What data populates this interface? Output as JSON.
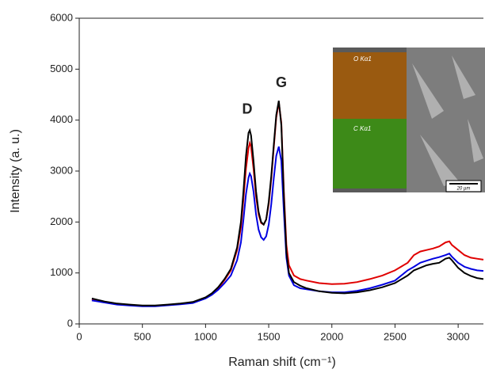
{
  "chart_data": {
    "type": "line",
    "xlabel": "Raman shift (cm⁻¹)",
    "ylabel": "Intensity (a. u.)",
    "annotations": [
      "D",
      "G"
    ],
    "inset_labels": [
      "O Kα1",
      "C Kα1",
      "20 µm"
    ],
    "x": [
      100,
      150,
      200,
      300,
      400,
      500,
      600,
      700,
      800,
      900,
      1000,
      1050,
      1100,
      1150,
      1200,
      1250,
      1280,
      1300,
      1320,
      1340,
      1350,
      1360,
      1380,
      1400,
      1420,
      1440,
      1460,
      1480,
      1500,
      1520,
      1540,
      1560,
      1580,
      1600,
      1620,
      1640,
      1660,
      1700,
      1750,
      1800,
      1900,
      2000,
      2100,
      2200,
      2300,
      2400,
      2500,
      2600,
      2650,
      2700,
      2750,
      2800,
      2850,
      2900,
      2930,
      2950,
      3000,
      3050,
      3100,
      3150,
      3200
    ],
    "series": [
      {
        "color": "#e00000",
        "values": [
          480,
          450,
          430,
          390,
          370,
          350,
          350,
          370,
          390,
          420,
          510,
          590,
          700,
          860,
          1050,
          1450,
          1900,
          2450,
          3050,
          3450,
          3550,
          3480,
          3050,
          2500,
          2150,
          1980,
          1950,
          2050,
          2350,
          2850,
          3450,
          4050,
          4350,
          3950,
          2600,
          1550,
          1150,
          950,
          880,
          850,
          800,
          780,
          790,
          820,
          880,
          950,
          1050,
          1200,
          1350,
          1420,
          1450,
          1480,
          1520,
          1600,
          1620,
          1550,
          1450,
          1350,
          1300,
          1280,
          1260
        ]
      },
      {
        "color": "#0000e0",
        "values": [
          460,
          440,
          420,
          380,
          360,
          345,
          345,
          365,
          385,
          410,
          500,
          570,
          670,
          800,
          950,
          1250,
          1600,
          2050,
          2550,
          2870,
          2950,
          2900,
          2600,
          2150,
          1850,
          1700,
          1650,
          1720,
          1950,
          2350,
          2850,
          3300,
          3480,
          3200,
          2200,
          1300,
          950,
          760,
          700,
          680,
          640,
          620,
          620,
          650,
          700,
          770,
          850,
          1050,
          1120,
          1200,
          1240,
          1280,
          1310,
          1350,
          1380,
          1320,
          1200,
          1120,
          1080,
          1050,
          1040
        ]
      },
      {
        "color": "#000000",
        "values": [
          500,
          470,
          440,
          400,
          380,
          360,
          360,
          380,
          400,
          430,
          520,
          600,
          720,
          880,
          1080,
          1500,
          2000,
          2600,
          3300,
          3750,
          3800,
          3700,
          3200,
          2600,
          2200,
          2000,
          1950,
          2050,
          2400,
          2900,
          3500,
          4100,
          4380,
          3900,
          2500,
          1400,
          1000,
          820,
          750,
          700,
          640,
          610,
          600,
          620,
          660,
          720,
          800,
          950,
          1050,
          1100,
          1150,
          1180,
          1200,
          1280,
          1300,
          1250,
          1100,
          1000,
          940,
          900,
          880
        ]
      }
    ],
    "xlim": [
      0,
      3200
    ],
    "xticks": [
      0,
      500,
      1000,
      1500,
      2000,
      2500,
      3000
    ],
    "ylim": [
      0,
      6000
    ],
    "yticks": [
      0,
      1000,
      2000,
      3000,
      4000,
      5000,
      6000
    ]
  }
}
